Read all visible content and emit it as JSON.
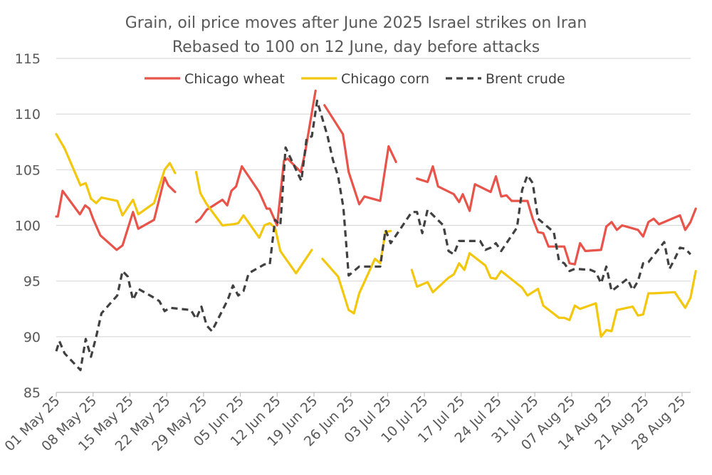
{
  "chart_data": {
    "type": "line",
    "title": "Grain, oil price moves after June 2025 Israel strikes on Iran",
    "subtitle": "Rebased to 100 on 12 June, day before attacks",
    "xlabel": "",
    "ylabel": "",
    "ylim": [
      85,
      115
    ],
    "yticks": [
      85,
      90,
      95,
      100,
      105,
      110,
      115
    ],
    "x_start": "2025-05-01",
    "x_tick_labels": [
      "01 May 25",
      "08 May 25",
      "15 May 25",
      "22 May 25",
      "29 May 25",
      "05 Jun 25",
      "12 Jun 25",
      "19 Jun 25",
      "26 Jun 25",
      "03 Jul 25",
      "10 Jul 25",
      "17 Jul 25",
      "24 Jul 25",
      "31 Jul 25",
      "07 Aug 25",
      "14 Aug 25",
      "21 Aug 25",
      "28 Aug 25"
    ],
    "x_tick_days": [
      0,
      7,
      14,
      21,
      28,
      35,
      42,
      49,
      56,
      63,
      70,
      77,
      84,
      91,
      98,
      105,
      112,
      119
    ],
    "legend_position": "top",
    "grid": "horizontal",
    "series": [
      {
        "name": "Chicago wheat",
        "color": "#E8534A",
        "dash": "solid",
        "points": [
          [
            0,
            100.8
          ],
          [
            0.3,
            100.8
          ],
          [
            1.2,
            103.1
          ],
          [
            4.5,
            101.0
          ],
          [
            5.5,
            101.8
          ],
          [
            6.3,
            101.5
          ],
          [
            7,
            100.6
          ],
          [
            8.4,
            99.1
          ],
          [
            11.5,
            97.8
          ],
          [
            12.6,
            98.2
          ],
          [
            14.6,
            101.2
          ],
          [
            15.6,
            99.7
          ],
          [
            18.6,
            100.5
          ],
          [
            20.6,
            104.3
          ],
          [
            21.3,
            103.6
          ],
          [
            22.6,
            103.0
          ],
          null,
          [
            26.6,
            100.3
          ],
          [
            27.4,
            100.6
          ],
          [
            28.6,
            101.4
          ],
          [
            31.6,
            102.3
          ],
          [
            32.5,
            101.8
          ],
          [
            33.3,
            103.1
          ],
          [
            34.2,
            103.5
          ],
          [
            35.3,
            105.3
          ],
          [
            38.6,
            103.0
          ],
          [
            40.0,
            101.5
          ],
          [
            40.6,
            101.5
          ],
          [
            42.0,
            100.0
          ],
          [
            43.3,
            105.8
          ],
          [
            44.0,
            106.0
          ],
          [
            46.5,
            104.8
          ],
          [
            47.3,
            106.5
          ],
          [
            49.3,
            112.1
          ],
          null,
          [
            51.0,
            110.8
          ],
          [
            54.5,
            108.2
          ],
          [
            55.6,
            104.8
          ],
          [
            57.6,
            101.9
          ],
          [
            58.6,
            102.6
          ],
          [
            61.6,
            102.2
          ],
          [
            63.2,
            107.1
          ],
          [
            64.6,
            105.7
          ],
          null,
          [
            68.6,
            104.2
          ],
          [
            70.6,
            103.9
          ],
          [
            71.6,
            105.3
          ],
          [
            72.6,
            103.5
          ],
          [
            75.6,
            102.8
          ],
          [
            76.6,
            102.1
          ],
          [
            77.3,
            102.8
          ],
          [
            78.6,
            101.3
          ],
          [
            79.6,
            103.7
          ],
          [
            82.6,
            103.0
          ],
          [
            83.6,
            104.4
          ],
          [
            84.6,
            102.6
          ],
          [
            85.6,
            102.7
          ],
          [
            86.6,
            102.2
          ],
          [
            89.6,
            102.2
          ],
          [
            90.6,
            100.6
          ],
          [
            91.6,
            99.4
          ],
          [
            92.6,
            99.3
          ],
          [
            93.6,
            98.1
          ],
          [
            96.6,
            98.1
          ],
          [
            97.6,
            96.6
          ],
          [
            98.6,
            96.5
          ],
          [
            99.6,
            98.4
          ],
          [
            100.6,
            97.7
          ],
          [
            103.6,
            97.8
          ],
          [
            104.6,
            99.9
          ],
          [
            105.6,
            100.3
          ],
          [
            106.6,
            99.6
          ],
          [
            107.6,
            100.0
          ],
          [
            110.6,
            99.6
          ],
          [
            111.6,
            99.0
          ],
          [
            112.6,
            100.3
          ],
          [
            113.6,
            100.6
          ],
          [
            114.6,
            100.1
          ],
          [
            118.6,
            100.9
          ],
          [
            119.6,
            99.6
          ],
          [
            120.6,
            100.3
          ],
          [
            121.6,
            101.5
          ]
        ]
      },
      {
        "name": "Chicago corn",
        "color": "#F2C70E",
        "dash": "solid",
        "points": [
          [
            0,
            108.2
          ],
          [
            1.6,
            106.9
          ],
          [
            4.6,
            103.6
          ],
          [
            5.6,
            103.8
          ],
          [
            6.6,
            102.4
          ],
          [
            7.6,
            102.0
          ],
          [
            8.6,
            102.5
          ],
          [
            11.6,
            102.2
          ],
          [
            12.6,
            100.9
          ],
          [
            14.6,
            102.3
          ],
          [
            15.6,
            101.0
          ],
          [
            18.6,
            102.0
          ],
          [
            20.6,
            105.0
          ],
          [
            21.6,
            105.6
          ],
          [
            22.6,
            104.7
          ],
          null,
          [
            26.6,
            104.8
          ],
          [
            27.4,
            102.9
          ],
          [
            28.6,
            101.9
          ],
          [
            31.6,
            100.0
          ],
          [
            33.6,
            100.1
          ],
          [
            34.6,
            100.2
          ],
          [
            35.6,
            100.9
          ],
          [
            38.6,
            98.9
          ],
          [
            39.6,
            100.0
          ],
          [
            40.6,
            100.2
          ],
          [
            41.6,
            99.8
          ],
          [
            42.6,
            97.7
          ],
          [
            45.6,
            95.7
          ],
          [
            46.6,
            96.4
          ],
          [
            48.6,
            97.8
          ],
          null,
          [
            50.6,
            97.0
          ],
          [
            53.6,
            95.4
          ],
          [
            55.6,
            92.4
          ],
          [
            56.6,
            92.1
          ],
          [
            57.6,
            93.9
          ],
          [
            60.6,
            97.0
          ],
          [
            61.6,
            96.6
          ],
          [
            62.6,
            99.4
          ],
          [
            63.6,
            99.5
          ],
          null,
          [
            67.6,
            96.0
          ],
          [
            68.6,
            94.5
          ],
          [
            70.6,
            94.9
          ],
          [
            71.6,
            94.0
          ],
          [
            74.6,
            95.3
          ],
          [
            75.6,
            95.6
          ],
          [
            76.6,
            96.6
          ],
          [
            77.6,
            96.0
          ],
          [
            78.6,
            97.5
          ],
          [
            81.6,
            96.4
          ],
          [
            82.6,
            95.3
          ],
          [
            83.6,
            95.2
          ],
          [
            84.6,
            95.9
          ],
          [
            88.6,
            94.4
          ],
          [
            89.6,
            93.7
          ],
          [
            91.6,
            94.3
          ],
          [
            92.6,
            92.8
          ],
          [
            95.6,
            91.7
          ],
          [
            96.6,
            91.7
          ],
          [
            97.6,
            91.5
          ],
          [
            98.6,
            92.8
          ],
          [
            99.6,
            92.5
          ],
          [
            102.6,
            93.0
          ],
          [
            103.6,
            90.0
          ],
          [
            104.6,
            90.6
          ],
          [
            105.6,
            90.5
          ],
          [
            106.6,
            92.4
          ],
          [
            109.6,
            92.7
          ],
          [
            110.6,
            91.9
          ],
          [
            111.6,
            92.0
          ],
          [
            112.6,
            93.9
          ],
          [
            113.6,
            93.9
          ],
          [
            117.6,
            94.0
          ],
          [
            119.6,
            92.6
          ],
          [
            120.6,
            93.5
          ],
          [
            121.6,
            95.9
          ]
        ]
      },
      {
        "name": "Brent crude",
        "color": "#404040",
        "dash": "dashed",
        "points": [
          [
            0,
            88.7
          ],
          [
            0.6,
            89.6
          ],
          [
            1.6,
            88.5
          ],
          [
            4.6,
            87.0
          ],
          [
            5.6,
            89.8
          ],
          [
            6.6,
            88.2
          ],
          [
            7.6,
            90.0
          ],
          [
            8.6,
            92.1
          ],
          [
            11.6,
            93.7
          ],
          [
            12.6,
            95.9
          ],
          [
            13.6,
            95.4
          ],
          [
            14.6,
            93.3
          ],
          [
            15.6,
            94.3
          ],
          [
            18.6,
            93.5
          ],
          [
            19.6,
            93.2
          ],
          [
            20.6,
            92.3
          ],
          [
            21.6,
            92.6
          ],
          [
            25.6,
            92.4
          ],
          [
            26.6,
            91.6
          ],
          [
            27.6,
            92.7
          ],
          [
            28.6,
            91.0
          ],
          [
            29.6,
            90.5
          ],
          [
            32.6,
            93.3
          ],
          [
            33.6,
            94.6
          ],
          [
            34.6,
            93.7
          ],
          [
            35.6,
            94.1
          ],
          [
            36.6,
            95.7
          ],
          [
            39.6,
            96.5
          ],
          [
            40.6,
            96.5
          ],
          [
            41.6,
            100.5
          ],
          [
            42.6,
            100.0
          ],
          [
            43.6,
            107.0
          ],
          [
            44.6,
            106.0
          ],
          [
            46.6,
            104.0
          ],
          [
            47.6,
            107.8
          ],
          [
            48.6,
            108.0
          ],
          [
            49.6,
            111.2
          ],
          [
            51.6,
            108.0
          ],
          [
            52.6,
            105.9
          ],
          [
            53.6,
            104.4
          ],
          [
            54.6,
            101.6
          ],
          [
            55.6,
            95.5
          ],
          [
            56.6,
            95.9
          ],
          [
            57.6,
            96.3
          ],
          [
            60.6,
            96.3
          ],
          [
            61.6,
            96.3
          ],
          [
            62.6,
            99.6
          ],
          [
            63.6,
            98.4
          ],
          [
            66.6,
            100.5
          ],
          [
            67.6,
            101.2
          ],
          [
            68.6,
            101.2
          ],
          [
            69.6,
            99.3
          ],
          [
            70.6,
            101.4
          ],
          [
            73.6,
            100.0
          ],
          [
            74.6,
            97.7
          ],
          [
            75.6,
            97.4
          ],
          [
            76.6,
            98.6
          ],
          [
            77.6,
            98.6
          ],
          [
            80.6,
            98.6
          ],
          [
            81.6,
            97.8
          ],
          [
            82.6,
            98.0
          ],
          [
            83.6,
            98.4
          ],
          [
            84.6,
            97.7
          ],
          [
            87.6,
            99.8
          ],
          [
            88.6,
            103.2
          ],
          [
            89.6,
            104.5
          ],
          [
            90.6,
            103.8
          ],
          [
            91.6,
            100.6
          ],
          [
            94.6,
            99.4
          ],
          [
            95.6,
            96.8
          ],
          [
            96.6,
            96.6
          ],
          [
            97.6,
            95.9
          ],
          [
            98.6,
            96.1
          ],
          [
            101.6,
            96.0
          ],
          [
            102.6,
            95.8
          ],
          [
            103.6,
            94.8
          ],
          [
            104.6,
            96.3
          ],
          [
            105.6,
            94.1
          ],
          [
            108.6,
            95.2
          ],
          [
            109.6,
            94.2
          ],
          [
            110.6,
            95.0
          ],
          [
            111.6,
            96.6
          ],
          [
            112.6,
            96.7
          ],
          [
            115.6,
            98.5
          ],
          [
            116.6,
            96.1
          ],
          [
            117.6,
            97.0
          ],
          [
            118.6,
            98.0
          ],
          [
            119.6,
            97.9
          ],
          [
            120.6,
            97.4
          ]
        ]
      }
    ]
  }
}
